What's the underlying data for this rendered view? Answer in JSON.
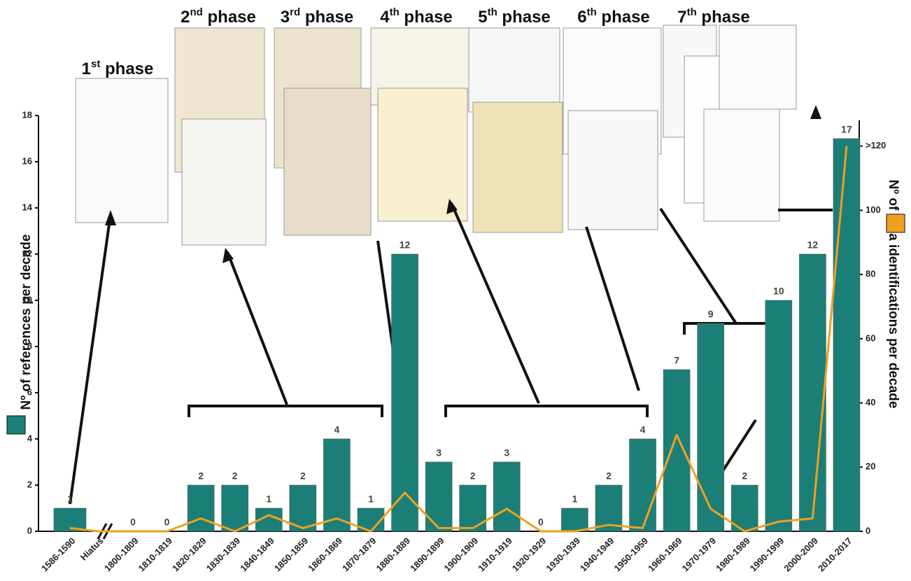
{
  "chart_data": {
    "type": "bar",
    "categories": [
      "1586-1590",
      "Hiatus",
      "1800-1809",
      "1810-1819",
      "1820-1829",
      "1830-1839",
      "1840-1849",
      "1850-1859",
      "1860-1869",
      "1870-1879",
      "1880-1889",
      "1890-1899",
      "1900-1909",
      "1910-1919",
      "1920-1929",
      "1930-1939",
      "1940-1949",
      "1950-1959",
      "1960-1969",
      "1970-1979",
      "1980-1989",
      "1990-1999",
      "2000-2009",
      "2010-2017"
    ],
    "series": [
      {
        "name": "Nº of references per decade",
        "color": "#1b7f78",
        "type": "bar",
        "values": [
          1,
          null,
          0,
          0,
          2,
          2,
          1,
          2,
          4,
          1,
          12,
          3,
          2,
          3,
          0,
          1,
          2,
          4,
          7,
          9,
          2,
          10,
          12,
          17
        ]
      },
      {
        "name": "Nº of taxa identifications per decade",
        "color": "#f0a020",
        "type": "line",
        "axis": "y2",
        "values": [
          1,
          0,
          0,
          0,
          4,
          0,
          5,
          1,
          4,
          0,
          12,
          1,
          1,
          7,
          0,
          0,
          2,
          1,
          30,
          7,
          0,
          3,
          4,
          120
        ]
      }
    ],
    "ylim": [
      0,
      18
    ],
    "yticks": [
      0,
      2,
      4,
      6,
      8,
      10,
      12,
      14,
      16,
      18
    ],
    "y2lim": [
      0,
      128
    ],
    "y2ticks": [
      0,
      20,
      40,
      60,
      80,
      100,
      {
        "value": 120,
        "label": ">120"
      }
    ],
    "phases": [
      {
        "number": "1",
        "suffix": "st",
        "word": " phase"
      },
      {
        "number": "2",
        "suffix": "nd",
        "word": " phase"
      },
      {
        "number": "3",
        "suffix": "rd",
        "word": " phase"
      },
      {
        "number": "4",
        "suffix": "th",
        "word": " phase"
      },
      {
        "number": "5",
        "suffix": "th",
        "word": " phase"
      },
      {
        "number": "6",
        "suffix": "th",
        "word": " phase"
      },
      {
        "number": "7",
        "suffix": "th",
        "word": " phase"
      }
    ]
  }
}
